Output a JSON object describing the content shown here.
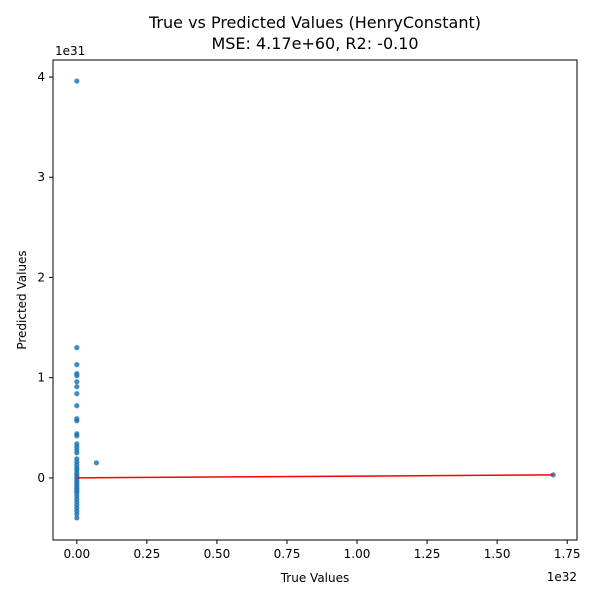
{
  "chart_data": {
    "type": "scatter",
    "title": "True vs Predicted Values (HenryConstant)",
    "subtitle": "MSE: 4.17e+60, R2: -0.10",
    "xlabel": "True Values",
    "ylabel": "Predicted Values",
    "x_exponent_label": "1e32",
    "y_exponent_label": "1e31",
    "x_units": "1e32",
    "y_units": "1e31",
    "xlim": [
      -0.085,
      1.785
    ],
    "ylim": [
      -0.62,
      4.17
    ],
    "x_ticks": [
      {
        "value": 0.0,
        "label": "0.00"
      },
      {
        "value": 0.25,
        "label": "0.25"
      },
      {
        "value": 0.5,
        "label": "0.50"
      },
      {
        "value": 0.75,
        "label": "0.75"
      },
      {
        "value": 1.0,
        "label": "1.00"
      },
      {
        "value": 1.25,
        "label": "1.25"
      },
      {
        "value": 1.5,
        "label": "1.50"
      },
      {
        "value": 1.75,
        "label": "1.75"
      }
    ],
    "y_ticks": [
      {
        "value": 0,
        "label": "0"
      },
      {
        "value": 1,
        "label": "1"
      },
      {
        "value": 2,
        "label": "2"
      },
      {
        "value": 3,
        "label": "3"
      },
      {
        "value": 4,
        "label": "4"
      }
    ],
    "grid": false,
    "point_color": "#1f77b4",
    "line_color": "#ff0000",
    "series": [
      {
        "points": [
          [
            0.0,
            3.96
          ],
          [
            0.0,
            1.3
          ],
          [
            0.0,
            1.13
          ],
          [
            0.0,
            1.04
          ],
          [
            0.0,
            1.02
          ],
          [
            0.0,
            0.96
          ],
          [
            0.0,
            0.91
          ],
          [
            0.0,
            0.84
          ],
          [
            0.0,
            0.72
          ],
          [
            0.0,
            0.59
          ],
          [
            0.0,
            0.57
          ],
          [
            0.0,
            0.44
          ],
          [
            0.0,
            0.42
          ],
          [
            0.0,
            0.34
          ],
          [
            0.0,
            0.31
          ],
          [
            0.0,
            0.28
          ],
          [
            0.0,
            0.25
          ],
          [
            0.0,
            0.19
          ],
          [
            0.0,
            0.16
          ],
          [
            0.0,
            0.13
          ],
          [
            0.0,
            0.1
          ],
          [
            0.0,
            0.08
          ],
          [
            0.0,
            0.05
          ],
          [
            0.0,
            0.03
          ],
          [
            0.0,
            0.01
          ],
          [
            0.0,
            -0.01
          ],
          [
            0.0,
            -0.03
          ],
          [
            0.0,
            -0.05
          ],
          [
            0.0,
            -0.07
          ],
          [
            0.0,
            -0.09
          ],
          [
            0.0,
            -0.11
          ],
          [
            0.0,
            -0.13
          ],
          [
            0.0,
            -0.15
          ],
          [
            0.0,
            -0.18
          ],
          [
            0.0,
            -0.21
          ],
          [
            0.0,
            -0.24
          ],
          [
            0.0,
            -0.27
          ],
          [
            0.0,
            -0.3
          ],
          [
            0.0,
            -0.33
          ],
          [
            0.0,
            -0.36
          ],
          [
            0.0,
            -0.4
          ],
          [
            0.07,
            0.15
          ],
          [
            1.7,
            0.03
          ]
        ]
      }
    ],
    "fit_line": [
      [
        0.0,
        0.0
      ],
      [
        1.7,
        0.03
      ]
    ]
  }
}
